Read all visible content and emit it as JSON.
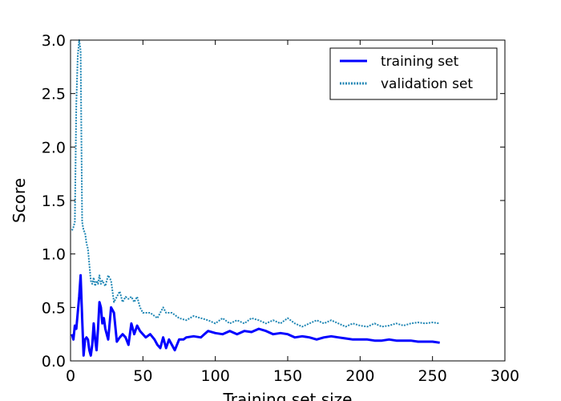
{
  "chart_data": {
    "type": "line",
    "xlabel": "Training set size",
    "ylabel": "Score",
    "xlim": [
      0,
      300
    ],
    "ylim": [
      0,
      3.0
    ],
    "x_ticks": [
      "0",
      "50",
      "100",
      "150",
      "200",
      "250",
      "300"
    ],
    "y_ticks": [
      "0.0",
      "0.5",
      "1.0",
      "1.5",
      "2.0",
      "2.5",
      "3.0"
    ],
    "grid": false,
    "legend_position": "top-right",
    "series": [
      {
        "name": "training set",
        "color": "#0000ff",
        "style": "solid",
        "x": [
          1,
          2,
          3,
          4,
          5,
          6,
          7,
          8,
          9,
          10,
          11,
          12,
          13,
          14,
          15,
          16,
          17,
          18,
          19,
          20,
          21,
          22,
          23,
          24,
          25,
          26,
          28,
          30,
          32,
          34,
          36,
          38,
          40,
          42,
          44,
          46,
          48,
          50,
          52,
          55,
          58,
          60,
          62,
          64,
          66,
          68,
          70,
          72,
          75,
          78,
          80,
          85,
          90,
          95,
          100,
          105,
          110,
          115,
          120,
          125,
          130,
          135,
          140,
          145,
          150,
          155,
          160,
          165,
          170,
          175,
          180,
          185,
          190,
          195,
          200,
          205,
          210,
          215,
          220,
          225,
          230,
          235,
          240,
          245,
          250,
          255
        ],
        "y": [
          0.25,
          0.2,
          0.33,
          0.3,
          0.45,
          0.6,
          0.8,
          0.4,
          0.05,
          0.2,
          0.22,
          0.2,
          0.1,
          0.05,
          0.15,
          0.35,
          0.2,
          0.1,
          0.3,
          0.55,
          0.5,
          0.35,
          0.4,
          0.3,
          0.25,
          0.2,
          0.5,
          0.45,
          0.18,
          0.22,
          0.25,
          0.22,
          0.15,
          0.35,
          0.25,
          0.33,
          0.28,
          0.25,
          0.22,
          0.25,
          0.2,
          0.15,
          0.12,
          0.22,
          0.12,
          0.2,
          0.15,
          0.1,
          0.2,
          0.2,
          0.22,
          0.23,
          0.22,
          0.28,
          0.26,
          0.25,
          0.28,
          0.25,
          0.28,
          0.27,
          0.3,
          0.28,
          0.25,
          0.26,
          0.25,
          0.22,
          0.23,
          0.22,
          0.2,
          0.22,
          0.23,
          0.22,
          0.21,
          0.2,
          0.2,
          0.2,
          0.19,
          0.19,
          0.2,
          0.19,
          0.19,
          0.19,
          0.18,
          0.18,
          0.18,
          0.17
        ]
      },
      {
        "name": "validation set",
        "color": "#1f86b4",
        "style": "dotted",
        "x": [
          1,
          2,
          3,
          4,
          5,
          6,
          7,
          8,
          9,
          10,
          11,
          12,
          13,
          14,
          15,
          16,
          17,
          18,
          19,
          20,
          21,
          22,
          24,
          26,
          28,
          30,
          32,
          34,
          36,
          38,
          40,
          42,
          44,
          46,
          48,
          50,
          55,
          60,
          62,
          64,
          66,
          70,
          75,
          80,
          85,
          90,
          95,
          100,
          105,
          110,
          115,
          120,
          125,
          130,
          135,
          140,
          145,
          150,
          155,
          160,
          165,
          170,
          175,
          180,
          185,
          190,
          195,
          200,
          205,
          210,
          215,
          220,
          225,
          230,
          235,
          240,
          245,
          250,
          255
        ],
        "y": [
          1.22,
          1.25,
          1.3,
          2.4,
          2.85,
          3.0,
          2.9,
          1.3,
          1.22,
          1.2,
          1.1,
          1.05,
          0.9,
          0.75,
          0.72,
          0.78,
          0.7,
          0.75,
          0.72,
          0.8,
          0.72,
          0.75,
          0.7,
          0.8,
          0.75,
          0.55,
          0.6,
          0.65,
          0.55,
          0.6,
          0.58,
          0.6,
          0.55,
          0.6,
          0.5,
          0.45,
          0.45,
          0.4,
          0.45,
          0.5,
          0.45,
          0.45,
          0.4,
          0.38,
          0.42,
          0.4,
          0.38,
          0.35,
          0.4,
          0.35,
          0.38,
          0.35,
          0.4,
          0.38,
          0.35,
          0.38,
          0.35,
          0.4,
          0.35,
          0.32,
          0.35,
          0.38,
          0.35,
          0.38,
          0.35,
          0.32,
          0.35,
          0.33,
          0.32,
          0.35,
          0.32,
          0.33,
          0.35,
          0.33,
          0.35,
          0.36,
          0.35,
          0.36,
          0.35
        ]
      }
    ]
  }
}
